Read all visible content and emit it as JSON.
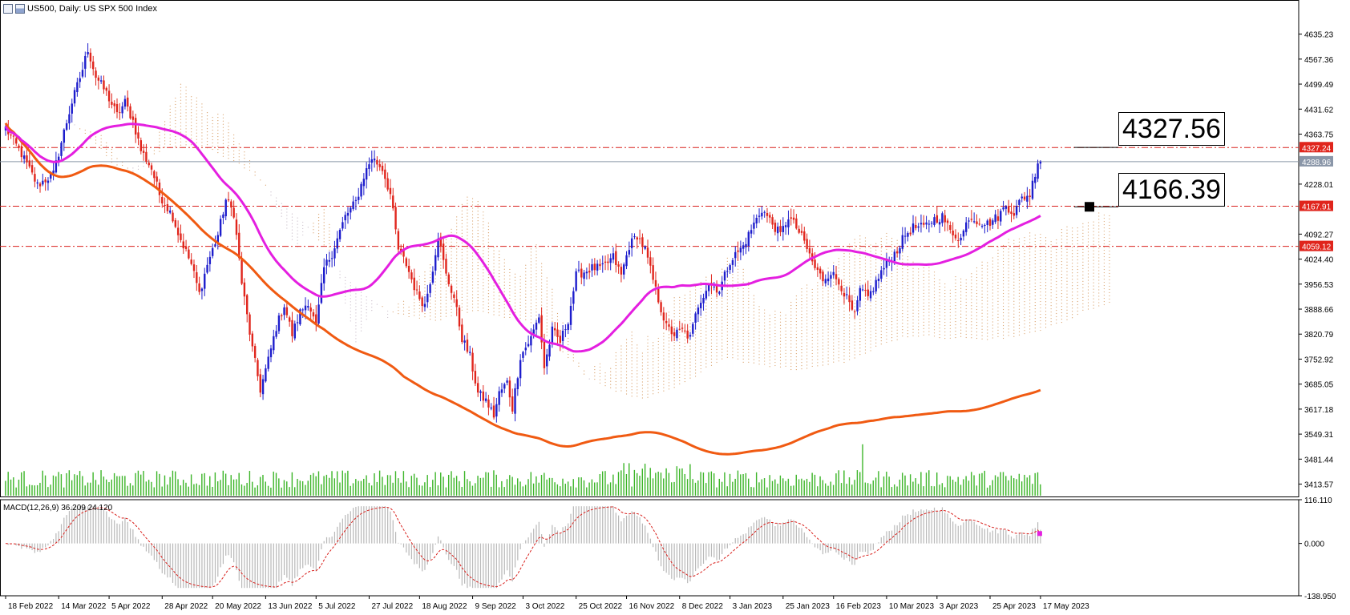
{
  "header": {
    "symbol": "US500, Daily:",
    "description": "US SPX 500 Index"
  },
  "chart_data": [
    {
      "type": "candlestick",
      "name": "US500 Daily price",
      "y_ticks": [
        "4635.23",
        "4567.36",
        "4499.49",
        "4431.62",
        "4363.75",
        "4228.01",
        "4092.27",
        "4024.40",
        "3956.53",
        "3888.66",
        "3820.79",
        "3752.92",
        "3685.05",
        "3617.18",
        "3549.31",
        "3481.44",
        "3413.57"
      ],
      "ylim": [
        3380,
        4680
      ],
      "price_tags": [
        {
          "label": "4327.24",
          "value": 4327.24,
          "color": "#e0251c"
        },
        {
          "label": "4288.96",
          "value": 4288.96,
          "color": "#8a96a8"
        },
        {
          "label": "4167.91",
          "value": 4167.91,
          "color": "#e0251c"
        },
        {
          "label": "4059.12",
          "value": 4059.12,
          "color": "#e0251c"
        }
      ],
      "horizontal_levels": [
        4327.24,
        4167.91,
        4059.12
      ],
      "current_price": 4288.96,
      "annotations": [
        {
          "text": "4327.56",
          "value": 4327.56
        },
        {
          "text": "4166.39",
          "value": 4166.39
        }
      ],
      "x_labels": [
        "18 Feb 2022",
        "14 Mar 2022",
        "5 Apr 2022",
        "28 Apr 2022",
        "20 May 2022",
        "13 Jun 2022",
        "5 Jul 2022",
        "27 Jul 2022",
        "18 Aug 2022",
        "9 Sep 2022",
        "3 Oct 2022",
        "25 Oct 2022",
        "16 Nov 2022",
        "8 Dec 2022",
        "3 Jan 2023",
        "25 Jan 2023",
        "16 Feb 2023",
        "10 Mar 2023",
        "3 Apr 2023",
        "25 Apr 2023",
        "17 May 2023"
      ],
      "close_anchors": [
        [
          0,
          4380
        ],
        [
          6,
          4310
        ],
        [
          12,
          4225
        ],
        [
          18,
          4255
        ],
        [
          22,
          4370
        ],
        [
          25,
          4450
        ],
        [
          29,
          4540
        ],
        [
          31,
          4595
        ],
        [
          34,
          4520
        ],
        [
          38,
          4475
        ],
        [
          42,
          4415
        ],
        [
          45,
          4450
        ],
        [
          48,
          4400
        ],
        [
          51,
          4320
        ],
        [
          55,
          4270
        ],
        [
          58,
          4200
        ],
        [
          63,
          4140
        ],
        [
          65,
          4095
        ],
        [
          70,
          4010
        ],
        [
          73,
          3930
        ],
        [
          76,
          4010
        ],
        [
          80,
          4090
        ],
        [
          83,
          4185
        ],
        [
          86,
          4150
        ],
        [
          89,
          3960
        ],
        [
          91,
          3870
        ],
        [
          93,
          3780
        ],
        [
          96,
          3670
        ],
        [
          99,
          3750
        ],
        [
          102,
          3840
        ],
        [
          105,
          3900
        ],
        [
          108,
          3820
        ],
        [
          111,
          3880
        ],
        [
          114,
          3910
        ],
        [
          117,
          3840
        ],
        [
          120,
          4000
        ],
        [
          123,
          4040
        ],
        [
          128,
          4140
        ],
        [
          132,
          4180
        ],
        [
          135,
          4250
        ],
        [
          138,
          4300
        ],
        [
          142,
          4270
        ],
        [
          145,
          4200
        ],
        [
          148,
          4050
        ],
        [
          151,
          4010
        ],
        [
          155,
          3930
        ],
        [
          158,
          3900
        ],
        [
          161,
          4000
        ],
        [
          163,
          4090
        ],
        [
          166,
          3980
        ],
        [
          169,
          3920
        ],
        [
          172,
          3810
        ],
        [
          175,
          3760
        ],
        [
          178,
          3660
        ],
        [
          181,
          3640
        ],
        [
          184,
          3600
        ],
        [
          186,
          3660
        ],
        [
          189,
          3690
        ],
        [
          191,
          3620
        ],
        [
          194,
          3760
        ],
        [
          198,
          3810
        ],
        [
          201,
          3870
        ],
        [
          203,
          3730
        ],
        [
          206,
          3830
        ],
        [
          209,
          3800
        ],
        [
          212,
          3860
        ],
        [
          215,
          3980
        ],
        [
          218,
          3990
        ],
        [
          221,
          4000
        ],
        [
          225,
          4000
        ],
        [
          229,
          4030
        ],
        [
          232,
          3980
        ],
        [
          235,
          4060
        ],
        [
          238,
          4090
        ],
        [
          241,
          4050
        ],
        [
          245,
          3940
        ],
        [
          249,
          3840
        ],
        [
          252,
          3820
        ],
        [
          255,
          3830
        ],
        [
          258,
          3810
        ],
        [
          261,
          3900
        ],
        [
          265,
          3960
        ],
        [
          269,
          3940
        ],
        [
          273,
          4020
        ],
        [
          278,
          4060
        ],
        [
          282,
          4120
        ],
        [
          285,
          4160
        ],
        [
          289,
          4120
        ],
        [
          292,
          4090
        ],
        [
          295,
          4140
        ],
        [
          298,
          4110
        ],
        [
          301,
          4070
        ],
        [
          305,
          4000
        ],
        [
          308,
          3970
        ],
        [
          311,
          3990
        ],
        [
          315,
          3950
        ],
        [
          318,
          3900
        ],
        [
          320,
          3870
        ],
        [
          322,
          3940
        ],
        [
          325,
          3920
        ],
        [
          328,
          3960
        ],
        [
          330,
          3990
        ],
        [
          333,
          4020
        ],
        [
          336,
          4050
        ],
        [
          339,
          4090
        ],
        [
          342,
          4110
        ],
        [
          346,
          4110
        ],
        [
          349,
          4130
        ],
        [
          353,
          4140
        ],
        [
          356,
          4100
        ],
        [
          360,
          4080
        ],
        [
          363,
          4140
        ],
        [
          366,
          4130
        ],
        [
          370,
          4120
        ],
        [
          374,
          4140
        ],
        [
          377,
          4170
        ],
        [
          380,
          4150
        ],
        [
          383,
          4190
        ],
        [
          386,
          4200
        ],
        [
          389,
          4290
        ]
      ],
      "volume_bars": 391,
      "macd": {
        "label": "MACD(12,26,9) 36.209 24.120",
        "y_ticks": [
          "116.110",
          "0.000",
          "-138.950"
        ],
        "ylim": [
          -138.95,
          116.11
        ],
        "last_histogram": 36.209,
        "last_signal": 24.12
      },
      "legend": [
        "MA 50 (magenta)",
        "MA 200 (orange)",
        "Ichimoku cloud",
        "Volume",
        "MACD"
      ]
    }
  ],
  "colors": {
    "bull": "#1d1dcc",
    "bear": "#e0251c",
    "ma_fast": "#e41fe0",
    "ma_slow": "#f05a12",
    "cloud_up": "#d8a06a",
    "cloud_down": "#c8bcc8",
    "volume": "#3cb528",
    "level": "#d9201c"
  }
}
